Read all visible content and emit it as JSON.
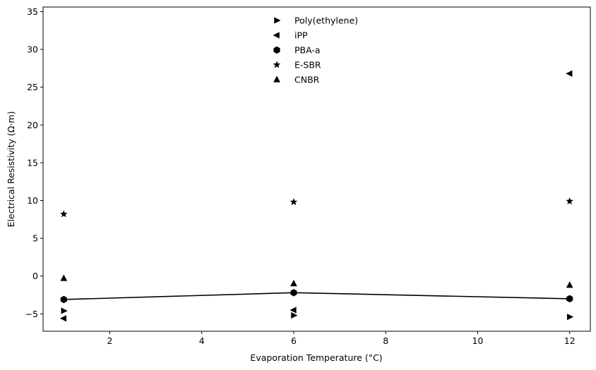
{
  "chart_data": {
    "type": "scatter",
    "title": "",
    "xlabel": "Evaporation Temperature (°C)",
    "ylabel": "Electrical Resistivity (Ω·m)",
    "xlim": [
      0.55,
      12.45
    ],
    "ylim": [
      -7.3,
      35.6
    ],
    "xticks": [
      2,
      4,
      6,
      8,
      10,
      12
    ],
    "yticks": [
      -5,
      0,
      5,
      10,
      15,
      20,
      25,
      30,
      35
    ],
    "grid": false,
    "legend_position": "top-center",
    "x": [
      1,
      6,
      12
    ],
    "series": [
      {
        "name": "Poly(ethylene)",
        "marker": "triangle-right",
        "color": "#000000",
        "y": [
          -4.6,
          -5.2,
          -5.4
        ]
      },
      {
        "name": "iPP",
        "marker": "triangle-left",
        "color": "#000000",
        "y": [
          -5.6,
          -4.5,
          26.8
        ]
      },
      {
        "name": "PBA-a",
        "marker": "hexagon",
        "color": "#000000",
        "y": [
          -3.1,
          -2.2,
          -3.0
        ],
        "line": true
      },
      {
        "name": "E-SBR",
        "marker": "star",
        "color": "#000000",
        "y": [
          8.2,
          9.8,
          9.9
        ]
      },
      {
        "name": "CNBR",
        "marker": "triangle-up",
        "color": "#000000",
        "y": [
          -0.3,
          -1.0,
          -1.2
        ]
      }
    ]
  }
}
